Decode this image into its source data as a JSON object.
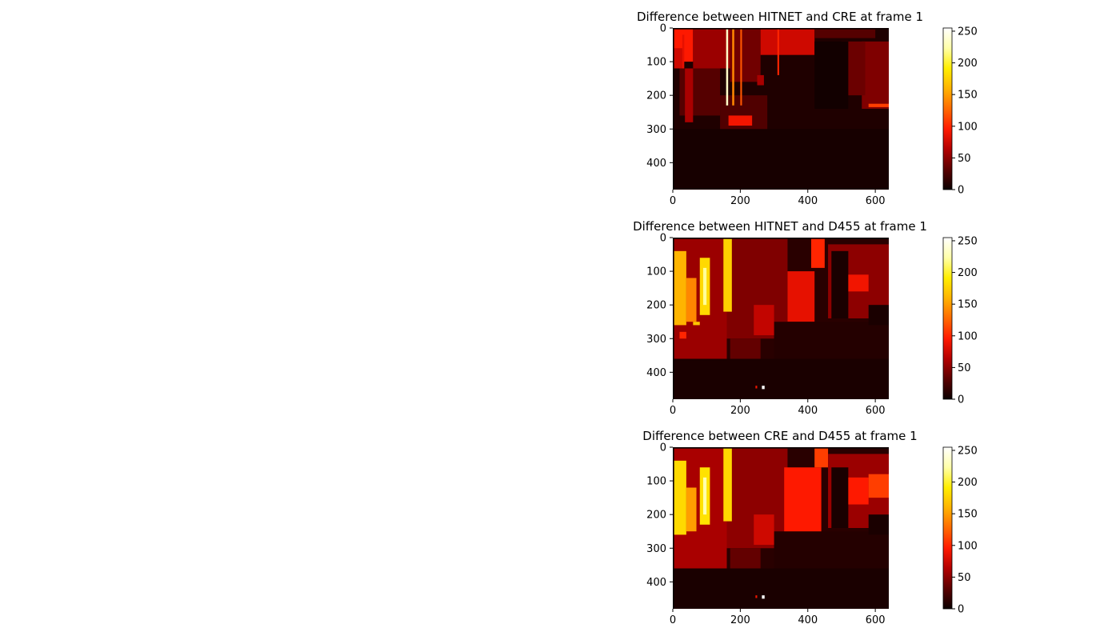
{
  "figure": {
    "background": "#ffffff",
    "colormap": "hot",
    "colormap_stops": [
      "#0b0000",
      "#5a0000",
      "#b30000",
      "#ff1a00",
      "#ff6a00",
      "#ffb300",
      "#ffee00",
      "#ffffa8",
      "#ffffff"
    ]
  },
  "chart_data": [
    {
      "type": "heatmap",
      "title": "Difference between HITNET and CRE at frame 1",
      "xlabel": "",
      "ylabel": "",
      "x_ticks": [
        "0",
        "200",
        "400",
        "600"
      ],
      "x_tick_values": [
        0,
        200,
        400,
        600
      ],
      "y_ticks": [
        "0",
        "100",
        "200",
        "300",
        "400"
      ],
      "y_tick_values": [
        0,
        100,
        200,
        300,
        400
      ],
      "xlim": [
        0,
        640
      ],
      "ylim": [
        480,
        0
      ],
      "colorbar": {
        "ticks": [
          "0",
          "50",
          "100",
          "150",
          "200",
          "250"
        ],
        "tick_values": [
          0,
          50,
          100,
          150,
          200,
          250
        ],
        "range": [
          0,
          255
        ]
      },
      "regions": [
        {
          "x": [
            0,
            640
          ],
          "y": [
            0,
            480
          ],
          "value": 8
        },
        {
          "x": [
            0,
            60
          ],
          "y": [
            0,
            100
          ],
          "value": 95
        },
        {
          "x": [
            60,
            170
          ],
          "y": [
            0,
            120
          ],
          "value": 55
        },
        {
          "x": [
            170,
            260
          ],
          "y": [
            0,
            160
          ],
          "value": 40
        },
        {
          "x": [
            260,
            420
          ],
          "y": [
            0,
            80
          ],
          "value": 75
        },
        {
          "x": [
            420,
            600
          ],
          "y": [
            0,
            30
          ],
          "value": 30
        },
        {
          "x": [
            560,
            640
          ],
          "y": [
            40,
            240
          ],
          "value": 45
        },
        {
          "x": [
            20,
            140
          ],
          "y": [
            120,
            260
          ],
          "value": 30
        },
        {
          "x": [
            140,
            280
          ],
          "y": [
            200,
            370
          ],
          "value": 28
        },
        {
          "x": [
            0,
            640
          ],
          "y": [
            300,
            480
          ],
          "value": 5
        },
        {
          "x": [
            0,
            30
          ],
          "y": [
            60,
            120
          ],
          "value": 75
        },
        {
          "x": [
            28,
            34
          ],
          "y": [
            20,
            120
          ],
          "value": 85
        },
        {
          "x": [
            158,
            164
          ],
          "y": [
            0,
            230
          ],
          "value": 235
        },
        {
          "x": [
            176,
            182
          ],
          "y": [
            0,
            230
          ],
          "value": 140
        },
        {
          "x": [
            200,
            205
          ],
          "y": [
            0,
            230
          ],
          "value": 120
        },
        {
          "x": [
            310,
            315
          ],
          "y": [
            0,
            140
          ],
          "value": 100
        },
        {
          "x": [
            36,
            60
          ],
          "y": [
            120,
            280
          ],
          "value": 60
        },
        {
          "x": [
            165,
            235
          ],
          "y": [
            260,
            290
          ],
          "value": 90
        },
        {
          "x": [
            250,
            270
          ],
          "y": [
            140,
            170
          ],
          "value": 60
        },
        {
          "x": [
            500,
            570
          ],
          "y": [
            40,
            200
          ],
          "value": 38
        },
        {
          "x": [
            580,
            640
          ],
          "y": [
            225,
            235
          ],
          "value": 110
        },
        {
          "x": [
            420,
            520
          ],
          "y": [
            40,
            240
          ],
          "value": 3
        },
        {
          "x": [
            0,
            640
          ],
          "y": [
            0,
            4
          ],
          "value": 0
        },
        {
          "x": [
            0,
            4
          ],
          "y": [
            0,
            480
          ],
          "value": 0
        }
      ]
    },
    {
      "type": "heatmap",
      "title": "Difference between HITNET and D455 at frame 1",
      "xlabel": "",
      "ylabel": "",
      "x_ticks": [
        "0",
        "200",
        "400",
        "600"
      ],
      "x_tick_values": [
        0,
        200,
        400,
        600
      ],
      "y_ticks": [
        "0",
        "100",
        "200",
        "300",
        "400"
      ],
      "y_tick_values": [
        0,
        100,
        200,
        300,
        400
      ],
      "xlim": [
        0,
        640
      ],
      "ylim": [
        480,
        0
      ],
      "colorbar": {
        "ticks": [
          "0",
          "50",
          "100",
          "150",
          "200",
          "250"
        ],
        "tick_values": [
          0,
          50,
          100,
          150,
          200,
          250
        ],
        "range": [
          0,
          255
        ]
      },
      "regions": [
        {
          "x": [
            0,
            640
          ],
          "y": [
            0,
            480
          ],
          "value": 12
        },
        {
          "x": [
            0,
            160
          ],
          "y": [
            0,
            360
          ],
          "value": 55
        },
        {
          "x": [
            160,
            340
          ],
          "y": [
            0,
            300
          ],
          "value": 45
        },
        {
          "x": [
            340,
            420
          ],
          "y": [
            100,
            250
          ],
          "value": 85
        },
        {
          "x": [
            410,
            450
          ],
          "y": [
            0,
            90
          ],
          "value": 100
        },
        {
          "x": [
            460,
            640
          ],
          "y": [
            20,
            240
          ],
          "value": 50
        },
        {
          "x": [
            0,
            640
          ],
          "y": [
            360,
            480
          ],
          "value": 6
        },
        {
          "x": [
            300,
            640
          ],
          "y": [
            250,
            360
          ],
          "value": 10
        },
        {
          "x": [
            0,
            40
          ],
          "y": [
            40,
            260
          ],
          "value": 160
        },
        {
          "x": [
            40,
            70
          ],
          "y": [
            120,
            250
          ],
          "value": 140
        },
        {
          "x": [
            80,
            110
          ],
          "y": [
            60,
            230
          ],
          "value": 180
        },
        {
          "x": [
            90,
            100
          ],
          "y": [
            90,
            200
          ],
          "value": 220
        },
        {
          "x": [
            150,
            175
          ],
          "y": [
            0,
            220
          ],
          "value": 175
        },
        {
          "x": [
            240,
            300
          ],
          "y": [
            200,
            290
          ],
          "value": 70
        },
        {
          "x": [
            20,
            40
          ],
          "y": [
            280,
            300
          ],
          "value": 100
        },
        {
          "x": [
            60,
            80
          ],
          "y": [
            250,
            260
          ],
          "value": 170
        },
        {
          "x": [
            170,
            260
          ],
          "y": [
            300,
            360
          ],
          "value": 35
        },
        {
          "x": [
            470,
            520
          ],
          "y": [
            40,
            240
          ],
          "value": 6
        },
        {
          "x": [
            520,
            580
          ],
          "y": [
            110,
            160
          ],
          "value": 90
        },
        {
          "x": [
            580,
            640
          ],
          "y": [
            200,
            260
          ],
          "value": 6
        },
        {
          "x": [
            264,
            272
          ],
          "y": [
            440,
            450
          ],
          "value": 255
        },
        {
          "x": [
            245,
            250
          ],
          "y": [
            440,
            448
          ],
          "value": 90
        },
        {
          "x": [
            0,
            640
          ],
          "y": [
            0,
            4
          ],
          "value": 0
        },
        {
          "x": [
            0,
            4
          ],
          "y": [
            0,
            480
          ],
          "value": 0
        }
      ]
    },
    {
      "type": "heatmap",
      "title": "Difference between CRE and D455 at frame 1",
      "xlabel": "",
      "ylabel": "",
      "x_ticks": [
        "0",
        "200",
        "400",
        "600"
      ],
      "x_tick_values": [
        0,
        200,
        400,
        600
      ],
      "y_ticks": [
        "0",
        "100",
        "200",
        "300",
        "400"
      ],
      "y_tick_values": [
        0,
        100,
        200,
        300,
        400
      ],
      "xlim": [
        0,
        640
      ],
      "ylim": [
        480,
        0
      ],
      "colorbar": {
        "ticks": [
          "0",
          "50",
          "100",
          "150",
          "200",
          "250"
        ],
        "tick_values": [
          0,
          50,
          100,
          150,
          200,
          250
        ],
        "range": [
          0,
          255
        ]
      },
      "regions": [
        {
          "x": [
            0,
            640
          ],
          "y": [
            0,
            480
          ],
          "value": 12
        },
        {
          "x": [
            0,
            160
          ],
          "y": [
            0,
            360
          ],
          "value": 60
        },
        {
          "x": [
            160,
            340
          ],
          "y": [
            0,
            300
          ],
          "value": 50
        },
        {
          "x": [
            330,
            440
          ],
          "y": [
            60,
            260
          ],
          "value": 95
        },
        {
          "x": [
            420,
            460
          ],
          "y": [
            0,
            60
          ],
          "value": 110
        },
        {
          "x": [
            460,
            640
          ],
          "y": [
            20,
            240
          ],
          "value": 55
        },
        {
          "x": [
            0,
            640
          ],
          "y": [
            360,
            480
          ],
          "value": 6
        },
        {
          "x": [
            300,
            640
          ],
          "y": [
            250,
            360
          ],
          "value": 10
        },
        {
          "x": [
            0,
            40
          ],
          "y": [
            40,
            260
          ],
          "value": 180
        },
        {
          "x": [
            40,
            70
          ],
          "y": [
            120,
            250
          ],
          "value": 150
        },
        {
          "x": [
            80,
            110
          ],
          "y": [
            60,
            230
          ],
          "value": 185
        },
        {
          "x": [
            90,
            100
          ],
          "y": [
            90,
            200
          ],
          "value": 225
        },
        {
          "x": [
            150,
            175
          ],
          "y": [
            0,
            220
          ],
          "value": 180
        },
        {
          "x": [
            240,
            300
          ],
          "y": [
            200,
            290
          ],
          "value": 75
        },
        {
          "x": [
            170,
            260
          ],
          "y": [
            300,
            360
          ],
          "value": 35
        },
        {
          "x": [
            470,
            520
          ],
          "y": [
            60,
            240
          ],
          "value": 6
        },
        {
          "x": [
            520,
            580
          ],
          "y": [
            90,
            170
          ],
          "value": 95
        },
        {
          "x": [
            580,
            640
          ],
          "y": [
            80,
            150
          ],
          "value": 110
        },
        {
          "x": [
            580,
            640
          ],
          "y": [
            200,
            260
          ],
          "value": 6
        },
        {
          "x": [
            264,
            272
          ],
          "y": [
            440,
            450
          ],
          "value": 255
        },
        {
          "x": [
            245,
            250
          ],
          "y": [
            440,
            448
          ],
          "value": 90
        },
        {
          "x": [
            0,
            640
          ],
          "y": [
            0,
            4
          ],
          "value": 0
        },
        {
          "x": [
            0,
            4
          ],
          "y": [
            0,
            480
          ],
          "value": 0
        }
      ]
    }
  ]
}
